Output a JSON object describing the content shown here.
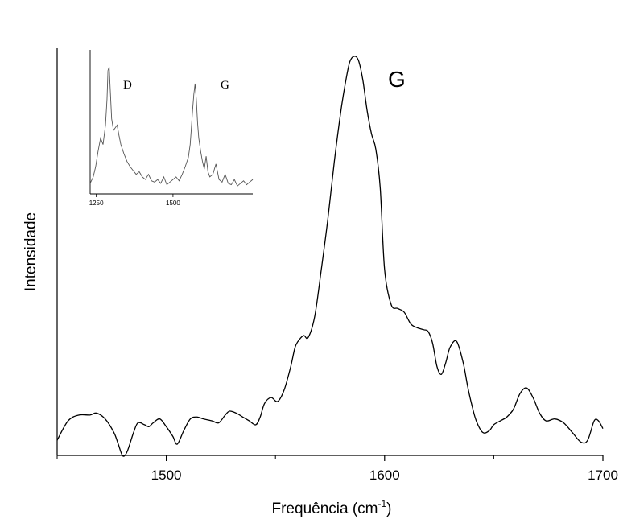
{
  "chart_data": {
    "type": "line",
    "title": "",
    "xlabel": "Frequência (cm",
    "xlabel_sup": "-1",
    "xlabel_close": ")",
    "ylabel": "Intensidade",
    "xlim": [
      1450,
      1700
    ],
    "ylim": [
      0,
      1
    ],
    "x_ticks": [
      1500,
      1600,
      1700
    ],
    "y_ticks": [],
    "grid": false,
    "peak_label": "G",
    "series": [
      {
        "x": [
          1450,
          1455,
          1460,
          1465,
          1468,
          1472,
          1476,
          1478,
          1480,
          1482,
          1485,
          1487,
          1490,
          1492,
          1494,
          1497,
          1500,
          1503,
          1505,
          1508,
          1511,
          1514,
          1517,
          1521,
          1524,
          1527,
          1529,
          1532,
          1535,
          1538,
          1541,
          1543,
          1545,
          1548,
          1551,
          1554,
          1557,
          1559,
          1561,
          1563,
          1565,
          1568,
          1571,
          1574,
          1577,
          1580,
          1582,
          1584,
          1586,
          1588,
          1590,
          1592,
          1594,
          1596,
          1598,
          1600,
          1603,
          1606,
          1609,
          1612,
          1615,
          1618,
          1620,
          1622,
          1624,
          1626,
          1628,
          1630,
          1633,
          1636,
          1638,
          1640,
          1642,
          1645,
          1648,
          1650,
          1653,
          1656,
          1659,
          1662,
          1665,
          1668,
          1671,
          1674,
          1678,
          1682,
          1686,
          1690,
          1693,
          1696,
          1698,
          1700
        ],
        "y": [
          0.01,
          0.06,
          0.075,
          0.075,
          0.08,
          0.065,
          0.03,
          0.0,
          -0.03,
          -0.02,
          0.03,
          0.055,
          0.05,
          0.045,
          0.055,
          0.065,
          0.045,
          0.02,
          0.0,
          0.035,
          0.065,
          0.07,
          0.065,
          0.06,
          0.055,
          0.075,
          0.085,
          0.08,
          0.07,
          0.06,
          0.05,
          0.07,
          0.105,
          0.12,
          0.11,
          0.14,
          0.2,
          0.25,
          0.27,
          0.28,
          0.275,
          0.33,
          0.45,
          0.58,
          0.73,
          0.86,
          0.93,
          0.985,
          1.0,
          0.99,
          0.94,
          0.86,
          0.8,
          0.76,
          0.66,
          0.45,
          0.36,
          0.35,
          0.34,
          0.31,
          0.3,
          0.295,
          0.29,
          0.26,
          0.2,
          0.18,
          0.21,
          0.25,
          0.265,
          0.21,
          0.15,
          0.1,
          0.06,
          0.03,
          0.035,
          0.05,
          0.06,
          0.07,
          0.09,
          0.13,
          0.145,
          0.12,
          0.08,
          0.06,
          0.065,
          0.055,
          0.03,
          0.005,
          0.01,
          0.06,
          0.06,
          0.04
        ]
      }
    ],
    "inset": {
      "x_ticks": [
        1250,
        1500
      ],
      "xlim": [
        1230,
        1760
      ],
      "ylim": [
        0,
        1
      ],
      "labels": [
        "D",
        "G"
      ],
      "series": [
        {
          "x": [
            1230,
            1240,
            1248,
            1256,
            1264,
            1272,
            1280,
            1285,
            1288,
            1292,
            1296,
            1300,
            1306,
            1312,
            1318,
            1324,
            1330,
            1340,
            1350,
            1360,
            1370,
            1380,
            1390,
            1400,
            1410,
            1420,
            1430,
            1440,
            1450,
            1460,
            1470,
            1480,
            1490,
            1500,
            1510,
            1520,
            1530,
            1540,
            1550,
            1556,
            1560,
            1564,
            1568,
            1572,
            1576,
            1580,
            1584,
            1590,
            1596,
            1602,
            1608,
            1614,
            1620,
            1630,
            1640,
            1650,
            1660,
            1670,
            1680,
            1690,
            1700,
            1710,
            1720,
            1730,
            1740,
            1750,
            1760
          ],
          "y": [
            0.05,
            0.1,
            0.18,
            0.3,
            0.4,
            0.35,
            0.5,
            0.7,
            0.92,
            0.95,
            0.75,
            0.55,
            0.46,
            0.48,
            0.5,
            0.42,
            0.35,
            0.28,
            0.22,
            0.18,
            0.15,
            0.12,
            0.14,
            0.1,
            0.08,
            0.12,
            0.07,
            0.06,
            0.08,
            0.05,
            0.1,
            0.04,
            0.06,
            0.08,
            0.1,
            0.07,
            0.12,
            0.18,
            0.25,
            0.35,
            0.48,
            0.62,
            0.74,
            0.82,
            0.7,
            0.52,
            0.4,
            0.3,
            0.22,
            0.16,
            0.26,
            0.14,
            0.1,
            0.12,
            0.2,
            0.08,
            0.06,
            0.12,
            0.05,
            0.04,
            0.08,
            0.03,
            0.05,
            0.07,
            0.04,
            0.06,
            0.08
          ]
        }
      ]
    }
  }
}
